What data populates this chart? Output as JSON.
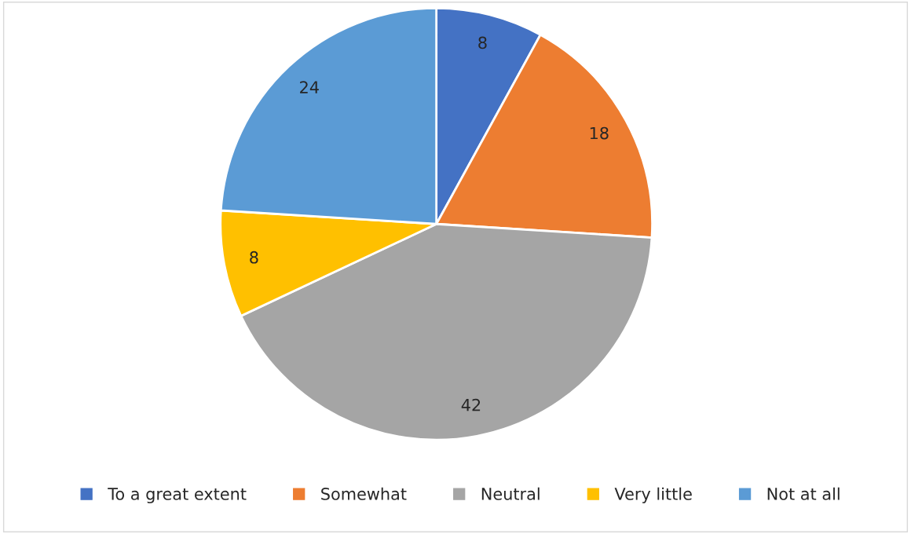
{
  "chart_data": {
    "type": "pie",
    "categories": [
      "To a great extent",
      "Somewhat",
      "Neutral",
      "Very little",
      "Not at all"
    ],
    "values": [
      8,
      18,
      42,
      8,
      24
    ],
    "colors": [
      "#4472c4",
      "#ed7d31",
      "#a5a5a5",
      "#ffc000",
      "#5b9bd5"
    ],
    "data_labels": true,
    "legend": "bottom"
  }
}
